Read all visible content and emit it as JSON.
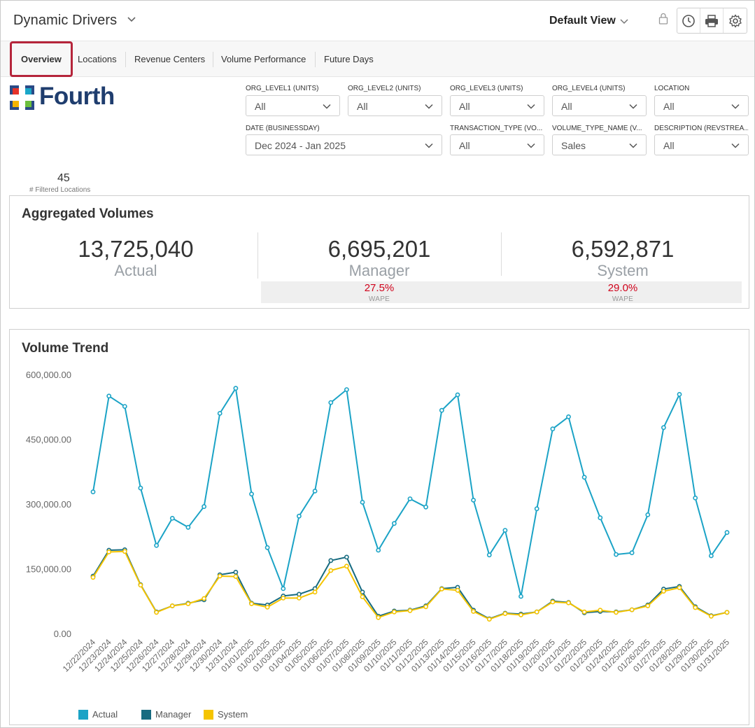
{
  "header": {
    "title": "Dynamic Drivers",
    "view": "Default View",
    "icons": [
      "lock-icon",
      "clock-icon",
      "print-icon",
      "gear-icon"
    ]
  },
  "tabs": [
    {
      "label": "Overview",
      "active": true
    },
    {
      "label": "Locations"
    },
    {
      "label": "Revenue Centers"
    },
    {
      "label": "Volume Performance"
    },
    {
      "label": "Future Days"
    }
  ],
  "logo": {
    "text": "Fourth"
  },
  "filters": {
    "org1": {
      "label": "ORG_LEVEL1 (UNITS)",
      "value": "All"
    },
    "org2": {
      "label": "ORG_LEVEL2 (UNITS)",
      "value": "All"
    },
    "org3": {
      "label": "ORG_LEVEL3 (UNITS)",
      "value": "All"
    },
    "org4": {
      "label": "ORG_LEVEL4 (UNITS)",
      "value": "All"
    },
    "location": {
      "label": "LOCATION",
      "value": "All"
    },
    "date": {
      "label": "DATE (BUSINESSDAY)",
      "value": "Dec 2024 - Jan 2025"
    },
    "txn": {
      "label": "TRANSACTION_TYPE (VO...",
      "value": "All"
    },
    "vol": {
      "label": "VOLUME_TYPE_NAME (V...",
      "value": "Sales"
    },
    "desc": {
      "label": "DESCRIPTION (REVSTREA...",
      "value": "All"
    }
  },
  "locations": {
    "count": "45",
    "label": "# Filtered Locations"
  },
  "aggregated": {
    "title": "Aggregated Volumes",
    "actual": {
      "value": "13,725,040",
      "label": "Actual"
    },
    "manager": {
      "value": "6,695,201",
      "label": "Manager",
      "wape": "27.5%",
      "wape_label": "WAPE"
    },
    "system": {
      "value": "6,592,871",
      "label": "System",
      "wape": "29.0%",
      "wape_label": "WAPE"
    }
  },
  "trend": {
    "title": "Volume Trend"
  },
  "colors": {
    "actual": "#1ba3c6",
    "manager": "#176b80",
    "system": "#f5c400",
    "accent": "#b5253b"
  },
  "chart_data": {
    "type": "line",
    "title": "Volume Trend",
    "ylim": [
      0,
      600000
    ],
    "yticks": [
      "0.00",
      "150,000.00",
      "300,000.00",
      "450,000.00",
      "600,000.00"
    ],
    "grid": false,
    "legend": "bottom-left",
    "x": [
      "12/22/2024",
      "12/23/2024",
      "12/24/2024",
      "12/25/2024",
      "12/26/2024",
      "12/27/2024",
      "12/28/2024",
      "12/29/2024",
      "12/30/2024",
      "12/31/2024",
      "01/01/2025",
      "01/02/2025",
      "01/03/2025",
      "01/04/2025",
      "01/05/2025",
      "01/06/2025",
      "01/07/2025",
      "01/08/2025",
      "01/09/2025",
      "01/10/2025",
      "01/11/2025",
      "01/12/2025",
      "01/13/2025",
      "01/14/2025",
      "01/15/2025",
      "01/16/2025",
      "01/17/2025",
      "01/18/2025",
      "01/19/2025",
      "01/20/2025",
      "01/21/2025",
      "01/22/2025",
      "01/23/2025",
      "01/24/2025",
      "01/25/2025",
      "01/26/2025",
      "01/27/2025",
      "01/28/2025",
      "01/29/2025",
      "01/30/2025",
      "01/31/2025"
    ],
    "series": [
      {
        "name": "Actual",
        "color": "#1ba3c6",
        "values": [
          328000,
          550000,
          526000,
          337000,
          204000,
          267000,
          246000,
          294000,
          510000,
          568000,
          323000,
          199000,
          104000,
          272000,
          330000,
          535000,
          565000,
          304000,
          193000,
          255000,
          312000,
          293000,
          517000,
          553000,
          309000,
          182000,
          239000,
          86000,
          289000,
          474000,
          502000,
          362000,
          268000,
          183000,
          187000,
          275000,
          477000,
          554000,
          314000,
          180000,
          234000
        ]
      },
      {
        "name": "Manager",
        "color": "#176b80",
        "values": [
          133000,
          193000,
          194000,
          113000,
          50000,
          64000,
          70000,
          78000,
          136000,
          142000,
          70000,
          66000,
          87000,
          91000,
          104000,
          169000,
          177000,
          96000,
          40000,
          52000,
          54000,
          64000,
          104000,
          107000,
          54000,
          34000,
          47000,
          45000,
          50000,
          75000,
          72000,
          48000,
          51000,
          50000,
          55000,
          66000,
          103000,
          109000,
          62000,
          41000,
          49000
        ]
      },
      {
        "name": "System",
        "color": "#f5c400",
        "values": [
          130000,
          189000,
          190000,
          112000,
          49000,
          64000,
          69000,
          81000,
          133000,
          132000,
          69000,
          61000,
          82000,
          82000,
          96000,
          146000,
          156000,
          85000,
          37000,
          50000,
          53000,
          62000,
          103000,
          100000,
          51000,
          33000,
          46000,
          43000,
          50000,
          73000,
          71000,
          50000,
          54000,
          49000,
          55000,
          64000,
          98000,
          106000,
          60000,
          40000,
          49000
        ]
      }
    ]
  }
}
